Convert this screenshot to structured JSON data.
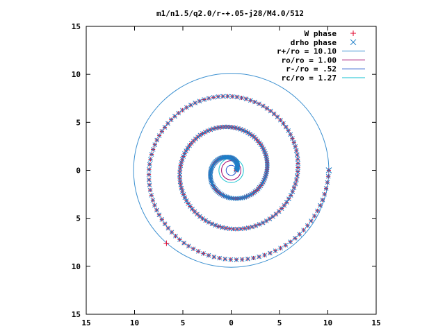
{
  "chart_data": {
    "type": "scatter",
    "title": "m1/n1.5/q2.0/r-+.05-j28/M4.0/512",
    "xlim": [
      -15,
      15
    ],
    "ylim": [
      -15,
      15
    ],
    "x_ticks": [
      -15,
      -10,
      -5,
      0,
      5,
      10,
      15
    ],
    "y_ticks": [
      -15,
      -10,
      -5,
      0,
      5,
      10,
      15
    ],
    "x_tick_labels": [
      "15",
      "10",
      "5",
      "0",
      "5",
      "10",
      "15"
    ],
    "y_tick_labels": [
      "15",
      "10",
      "5",
      "0",
      "5",
      "10",
      "15"
    ],
    "grid": false,
    "legend_position": "top-right",
    "colors": {
      "w_phase": "#e0002a",
      "drho_phase": "#1e7ec8",
      "r_plus": "#3a8fd0",
      "ro": "#a0006a",
      "r_minus": "#2255cc",
      "rc": "#10c0d0"
    },
    "series": [
      {
        "name": "W phase",
        "marker": "+",
        "spiral": {
          "r_start": 0.5,
          "r_end": 10.1,
          "theta_start_deg": 0,
          "turns": 3.0,
          "points": 300
        },
        "extra_points": [
          [
            -6.7,
            -7.6
          ]
        ]
      },
      {
        "name": "drho phase",
        "marker": "x",
        "spiral": {
          "r_start": 0.5,
          "r_end": 10.1,
          "theta_start_deg": 0,
          "turns": 3.0,
          "points": 300
        },
        "extra_points": [
          [
            10.1,
            0.0
          ]
        ]
      }
    ],
    "circles": [
      {
        "name": "r+/ro = 10.10",
        "radius": 10.1
      },
      {
        "name": "ro/ro = 1.00",
        "radius": 1.0
      },
      {
        "name": "r-/ro = .52",
        "radius": 0.52
      },
      {
        "name": "rc/ro = 1.27",
        "radius": 1.27
      }
    ]
  }
}
